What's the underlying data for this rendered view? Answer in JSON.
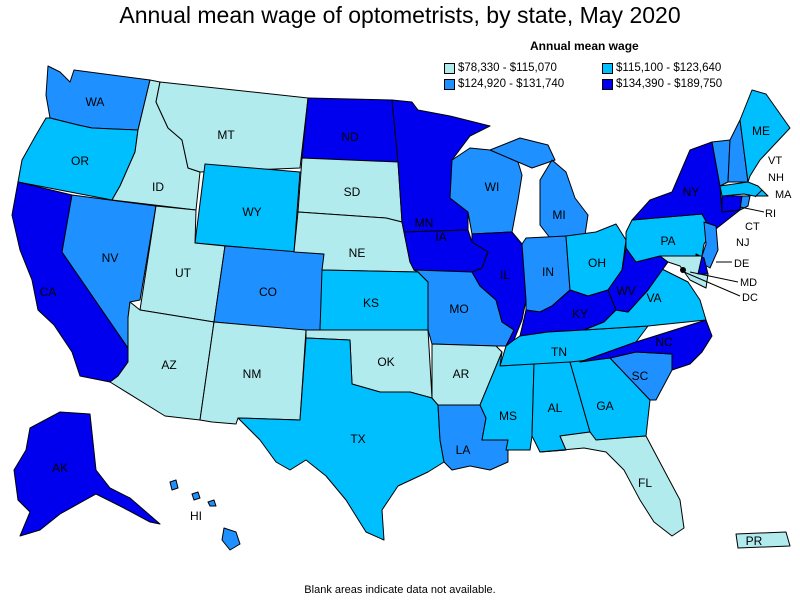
{
  "title": "Annual mean wage of optometrists, by state, May 2020",
  "legend": {
    "title": "Annual mean wage",
    "items": [
      {
        "label": "$78,330 - $115,070",
        "color": "#b2ebee"
      },
      {
        "label": "$115,100 - $123,640",
        "color": "#00bfff"
      },
      {
        "label": "$124,920 - $131,740",
        "color": "#1e90ff"
      },
      {
        "label": "$134,390 - $189,750",
        "color": "#0000ee"
      }
    ]
  },
  "footer": "Blank areas indicate data not available.",
  "states": [
    {
      "abbr": "WA",
      "tier": 2
    },
    {
      "abbr": "OR",
      "tier": 1
    },
    {
      "abbr": "CA",
      "tier": 3
    },
    {
      "abbr": "ID",
      "tier": 0
    },
    {
      "abbr": "NV",
      "tier": 2
    },
    {
      "abbr": "MT",
      "tier": 0
    },
    {
      "abbr": "WY",
      "tier": 1
    },
    {
      "abbr": "UT",
      "tier": 0
    },
    {
      "abbr": "AZ",
      "tier": 0
    },
    {
      "abbr": "CO",
      "tier": 2
    },
    {
      "abbr": "NM",
      "tier": 0
    },
    {
      "abbr": "ND",
      "tier": 3
    },
    {
      "abbr": "SD",
      "tier": 0
    },
    {
      "abbr": "NE",
      "tier": 0
    },
    {
      "abbr": "KS",
      "tier": 1
    },
    {
      "abbr": "OK",
      "tier": 0
    },
    {
      "abbr": "TX",
      "tier": 1
    },
    {
      "abbr": "MN",
      "tier": 3
    },
    {
      "abbr": "IA",
      "tier": 3
    },
    {
      "abbr": "MO",
      "tier": 2
    },
    {
      "abbr": "AR",
      "tier": 0
    },
    {
      "abbr": "LA",
      "tier": 2
    },
    {
      "abbr": "WI",
      "tier": 2
    },
    {
      "abbr": "IL",
      "tier": 3
    },
    {
      "abbr": "MI",
      "tier": 2
    },
    {
      "abbr": "IN",
      "tier": 2
    },
    {
      "abbr": "OH",
      "tier": 1
    },
    {
      "abbr": "KY",
      "tier": 3
    },
    {
      "abbr": "TN",
      "tier": 1
    },
    {
      "abbr": "MS",
      "tier": 1
    },
    {
      "abbr": "AL",
      "tier": 1
    },
    {
      "abbr": "GA",
      "tier": 1
    },
    {
      "abbr": "FL",
      "tier": 0
    },
    {
      "abbr": "SC",
      "tier": 2
    },
    {
      "abbr": "NC",
      "tier": 3
    },
    {
      "abbr": "VA",
      "tier": 1
    },
    {
      "abbr": "WV",
      "tier": 3
    },
    {
      "abbr": "PA",
      "tier": 1
    },
    {
      "abbr": "NY",
      "tier": 3
    },
    {
      "abbr": "VT",
      "tier": 2
    },
    {
      "abbr": "NH",
      "tier": 2
    },
    {
      "abbr": "ME",
      "tier": 1
    },
    {
      "abbr": "MA",
      "tier": 1
    },
    {
      "abbr": "RI",
      "tier": 2
    },
    {
      "abbr": "CT",
      "tier": 3
    },
    {
      "abbr": "NJ",
      "tier": 2
    },
    {
      "abbr": "DE",
      "tier": 3
    },
    {
      "abbr": "MD",
      "tier": 0
    },
    {
      "abbr": "DC",
      "tier": 0
    },
    {
      "abbr": "AK",
      "tier": 3
    },
    {
      "abbr": "HI",
      "tier": 2
    },
    {
      "abbr": "PR",
      "tier": 0
    }
  ]
}
